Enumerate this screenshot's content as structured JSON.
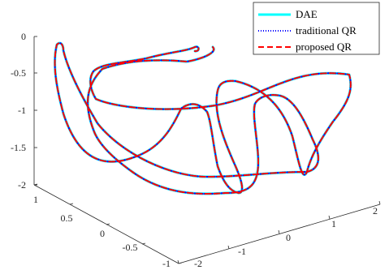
{
  "chart_data": {
    "type": "line",
    "view": "3d",
    "grid": false,
    "legend_location": "top-right",
    "z_ticks": [
      "0",
      "-0.5",
      "-1",
      "-1.5",
      "-2"
    ],
    "x_ticks": [
      "1",
      "0.5",
      "0",
      "-0.5",
      "-1"
    ],
    "y_ticks": [
      "-2",
      "-1",
      "0",
      "1",
      "2"
    ],
    "series": [
      {
        "name": "DAE",
        "color": "#00FFFF",
        "style": "solid"
      },
      {
        "name": "traditional QR",
        "color": "#0000FF",
        "style": "dotted"
      },
      {
        "name": "proposed QR",
        "color": "#FF0000",
        "style": "dashed"
      }
    ]
  }
}
